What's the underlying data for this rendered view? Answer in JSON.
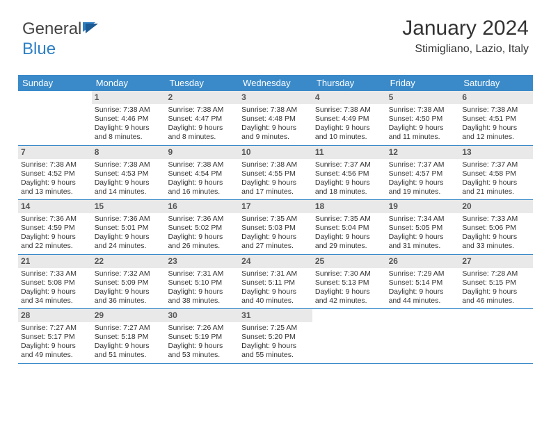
{
  "logo": {
    "part1": "General",
    "part2": "Blue"
  },
  "header": {
    "month_title": "January 2024",
    "location": "Stimigliano, Lazio, Italy"
  },
  "colors": {
    "header_bg": "#3a8ac9",
    "header_text": "#ffffff",
    "daynum_bg": "#e9e9e9",
    "daynum_text": "#555555",
    "body_text": "#333333",
    "rule": "#3a8ac9"
  },
  "calendar": {
    "days_of_week": [
      "Sunday",
      "Monday",
      "Tuesday",
      "Wednesday",
      "Thursday",
      "Friday",
      "Saturday"
    ],
    "start_offset": 1,
    "days": [
      {
        "n": 1,
        "sr": "7:38 AM",
        "ss": "4:46 PM",
        "dl": "9 hours and 8 minutes."
      },
      {
        "n": 2,
        "sr": "7:38 AM",
        "ss": "4:47 PM",
        "dl": "9 hours and 8 minutes."
      },
      {
        "n": 3,
        "sr": "7:38 AM",
        "ss": "4:48 PM",
        "dl": "9 hours and 9 minutes."
      },
      {
        "n": 4,
        "sr": "7:38 AM",
        "ss": "4:49 PM",
        "dl": "9 hours and 10 minutes."
      },
      {
        "n": 5,
        "sr": "7:38 AM",
        "ss": "4:50 PM",
        "dl": "9 hours and 11 minutes."
      },
      {
        "n": 6,
        "sr": "7:38 AM",
        "ss": "4:51 PM",
        "dl": "9 hours and 12 minutes."
      },
      {
        "n": 7,
        "sr": "7:38 AM",
        "ss": "4:52 PM",
        "dl": "9 hours and 13 minutes."
      },
      {
        "n": 8,
        "sr": "7:38 AM",
        "ss": "4:53 PM",
        "dl": "9 hours and 14 minutes."
      },
      {
        "n": 9,
        "sr": "7:38 AM",
        "ss": "4:54 PM",
        "dl": "9 hours and 16 minutes."
      },
      {
        "n": 10,
        "sr": "7:38 AM",
        "ss": "4:55 PM",
        "dl": "9 hours and 17 minutes."
      },
      {
        "n": 11,
        "sr": "7:37 AM",
        "ss": "4:56 PM",
        "dl": "9 hours and 18 minutes."
      },
      {
        "n": 12,
        "sr": "7:37 AM",
        "ss": "4:57 PM",
        "dl": "9 hours and 19 minutes."
      },
      {
        "n": 13,
        "sr": "7:37 AM",
        "ss": "4:58 PM",
        "dl": "9 hours and 21 minutes."
      },
      {
        "n": 14,
        "sr": "7:36 AM",
        "ss": "4:59 PM",
        "dl": "9 hours and 22 minutes."
      },
      {
        "n": 15,
        "sr": "7:36 AM",
        "ss": "5:01 PM",
        "dl": "9 hours and 24 minutes."
      },
      {
        "n": 16,
        "sr": "7:36 AM",
        "ss": "5:02 PM",
        "dl": "9 hours and 26 minutes."
      },
      {
        "n": 17,
        "sr": "7:35 AM",
        "ss": "5:03 PM",
        "dl": "9 hours and 27 minutes."
      },
      {
        "n": 18,
        "sr": "7:35 AM",
        "ss": "5:04 PM",
        "dl": "9 hours and 29 minutes."
      },
      {
        "n": 19,
        "sr": "7:34 AM",
        "ss": "5:05 PM",
        "dl": "9 hours and 31 minutes."
      },
      {
        "n": 20,
        "sr": "7:33 AM",
        "ss": "5:06 PM",
        "dl": "9 hours and 33 minutes."
      },
      {
        "n": 21,
        "sr": "7:33 AM",
        "ss": "5:08 PM",
        "dl": "9 hours and 34 minutes."
      },
      {
        "n": 22,
        "sr": "7:32 AM",
        "ss": "5:09 PM",
        "dl": "9 hours and 36 minutes."
      },
      {
        "n": 23,
        "sr": "7:31 AM",
        "ss": "5:10 PM",
        "dl": "9 hours and 38 minutes."
      },
      {
        "n": 24,
        "sr": "7:31 AM",
        "ss": "5:11 PM",
        "dl": "9 hours and 40 minutes."
      },
      {
        "n": 25,
        "sr": "7:30 AM",
        "ss": "5:13 PM",
        "dl": "9 hours and 42 minutes."
      },
      {
        "n": 26,
        "sr": "7:29 AM",
        "ss": "5:14 PM",
        "dl": "9 hours and 44 minutes."
      },
      {
        "n": 27,
        "sr": "7:28 AM",
        "ss": "5:15 PM",
        "dl": "9 hours and 46 minutes."
      },
      {
        "n": 28,
        "sr": "7:27 AM",
        "ss": "5:17 PM",
        "dl": "9 hours and 49 minutes."
      },
      {
        "n": 29,
        "sr": "7:27 AM",
        "ss": "5:18 PM",
        "dl": "9 hours and 51 minutes."
      },
      {
        "n": 30,
        "sr": "7:26 AM",
        "ss": "5:19 PM",
        "dl": "9 hours and 53 minutes."
      },
      {
        "n": 31,
        "sr": "7:25 AM",
        "ss": "5:20 PM",
        "dl": "9 hours and 55 minutes."
      }
    ],
    "labels": {
      "sunrise": "Sunrise:",
      "sunset": "Sunset:",
      "daylight": "Daylight:"
    }
  }
}
